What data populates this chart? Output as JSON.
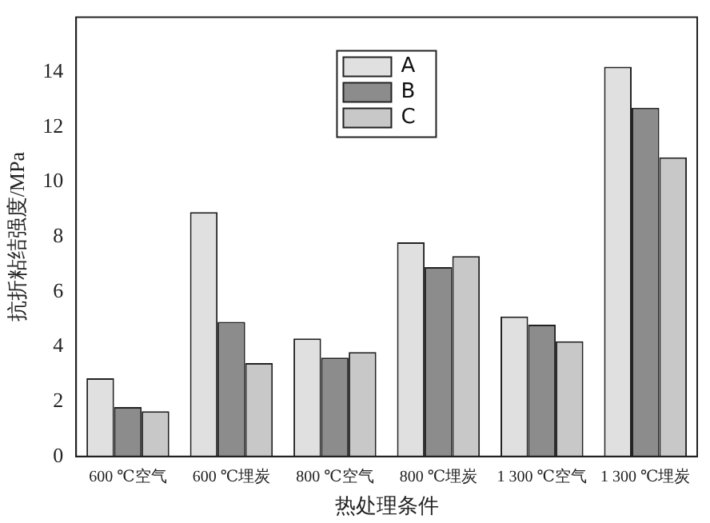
{
  "chart_data": {
    "type": "bar",
    "xlabel": "热处理条件",
    "ylabel": "抗折粘结强度/MPa",
    "categories": [
      "600 ℃空气",
      "600 ℃埋炭",
      "800 ℃空气",
      "800 ℃埋炭",
      "1 300 ℃空气",
      "1 300 ℃埋炭"
    ],
    "series": [
      {
        "name": "A",
        "color": "#e0e0e0",
        "values": [
          2.85,
          8.9,
          4.3,
          7.8,
          5.1,
          14.2
        ]
      },
      {
        "name": "B",
        "color": "#8c8c8c",
        "values": [
          1.8,
          4.9,
          3.6,
          6.9,
          4.8,
          12.7
        ]
      },
      {
        "name": "C",
        "color": "#c8c8c8",
        "values": [
          1.65,
          3.4,
          3.8,
          7.3,
          4.2,
          10.9
        ]
      }
    ],
    "ylim": [
      0,
      16
    ],
    "yticks": [
      0,
      2,
      4,
      6,
      8,
      10,
      12,
      14
    ],
    "grid": false,
    "legend": "top"
  }
}
